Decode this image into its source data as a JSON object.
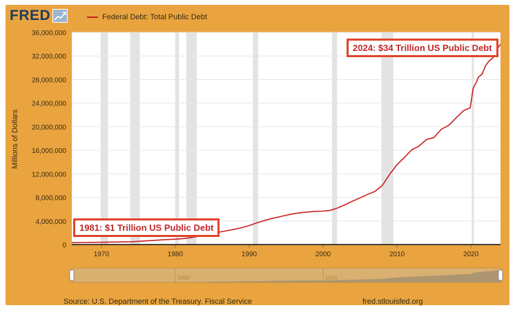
{
  "header": {
    "logo": "FRED",
    "legend_label": "Federal Debt: Total Public Debt"
  },
  "footer": {
    "source": "Source: U.S. Department of the Treasury. Fiscal Service",
    "site": "fred.stlouisfed.org"
  },
  "annotations": {
    "start": "1981: $1 Trillion US Public Debt",
    "end": "2024: $34 Trillion US Public Debt"
  },
  "colors": {
    "frame": "#e9a440",
    "series": "#c81e1e",
    "recession": "#e3e3e3",
    "annotation_border": "#e0442a"
  },
  "chart_data": {
    "type": "line",
    "ylabel": "Millions of Dollars",
    "xlim": [
      1966,
      2024
    ],
    "ylim": [
      0,
      36000000
    ],
    "x_ticks": [
      "1970",
      "1980",
      "1990",
      "2000",
      "2010",
      "2020"
    ],
    "y_ticks": [
      "0",
      "4,000,000",
      "8,000,000",
      "12,000,000",
      "16,000,000",
      "20,000,000",
      "24,000,000",
      "28,000,000",
      "32,000,000",
      "36,000,000"
    ],
    "grid": "horizontal",
    "series": [
      {
        "name": "Federal Debt: Total Public Debt",
        "x": [
          1966,
          1968,
          1970,
          1972,
          1974,
          1976,
          1978,
          1980,
          1981,
          1982,
          1983,
          1984,
          1985,
          1986,
          1987,
          1988,
          1989,
          1990,
          1991,
          1992,
          1993,
          1994,
          1995,
          1996,
          1997,
          1998,
          1999,
          2000,
          2001,
          2002,
          2003,
          2004,
          2005,
          2006,
          2007,
          2008,
          2009,
          2010,
          2011,
          2012,
          2013,
          2014,
          2015,
          2016,
          2017,
          2018,
          2019,
          2019.9,
          2020.3,
          2020.8,
          2021,
          2021.5,
          2022,
          2022.5,
          2023,
          2023.5,
          2024
        ],
        "values": [
          320000,
          350000,
          380000,
          430000,
          480000,
          620000,
          780000,
          910000,
          1000000,
          1150000,
          1380000,
          1570000,
          1820000,
          2120000,
          2350000,
          2600000,
          2860000,
          3230000,
          3670000,
          4060000,
          4410000,
          4690000,
          4970000,
          5220000,
          5410000,
          5530000,
          5650000,
          5670000,
          5810000,
          6230000,
          6780000,
          7380000,
          7930000,
          8500000,
          9010000,
          10020000,
          11910000,
          13560000,
          14790000,
          16070000,
          16740000,
          17820000,
          18150000,
          19570000,
          20240000,
          21520000,
          22720000,
          23200000,
          26500000,
          27700000,
          28400000,
          28900000,
          30400000,
          31200000,
          31700000,
          33100000,
          34000000
        ]
      }
    ],
    "recessions": [
      [
        1969.9,
        1970.9
      ],
      [
        1973.9,
        1975.2
      ],
      [
        1980.0,
        1980.5
      ],
      [
        1981.5,
        1982.9
      ],
      [
        1990.5,
        1991.2
      ],
      [
        2001.2,
        2001.9
      ],
      [
        2007.9,
        2009.5
      ],
      [
        2020.1,
        2020.4
      ]
    ],
    "navigator_ticks": [
      "1980",
      "2000"
    ]
  }
}
